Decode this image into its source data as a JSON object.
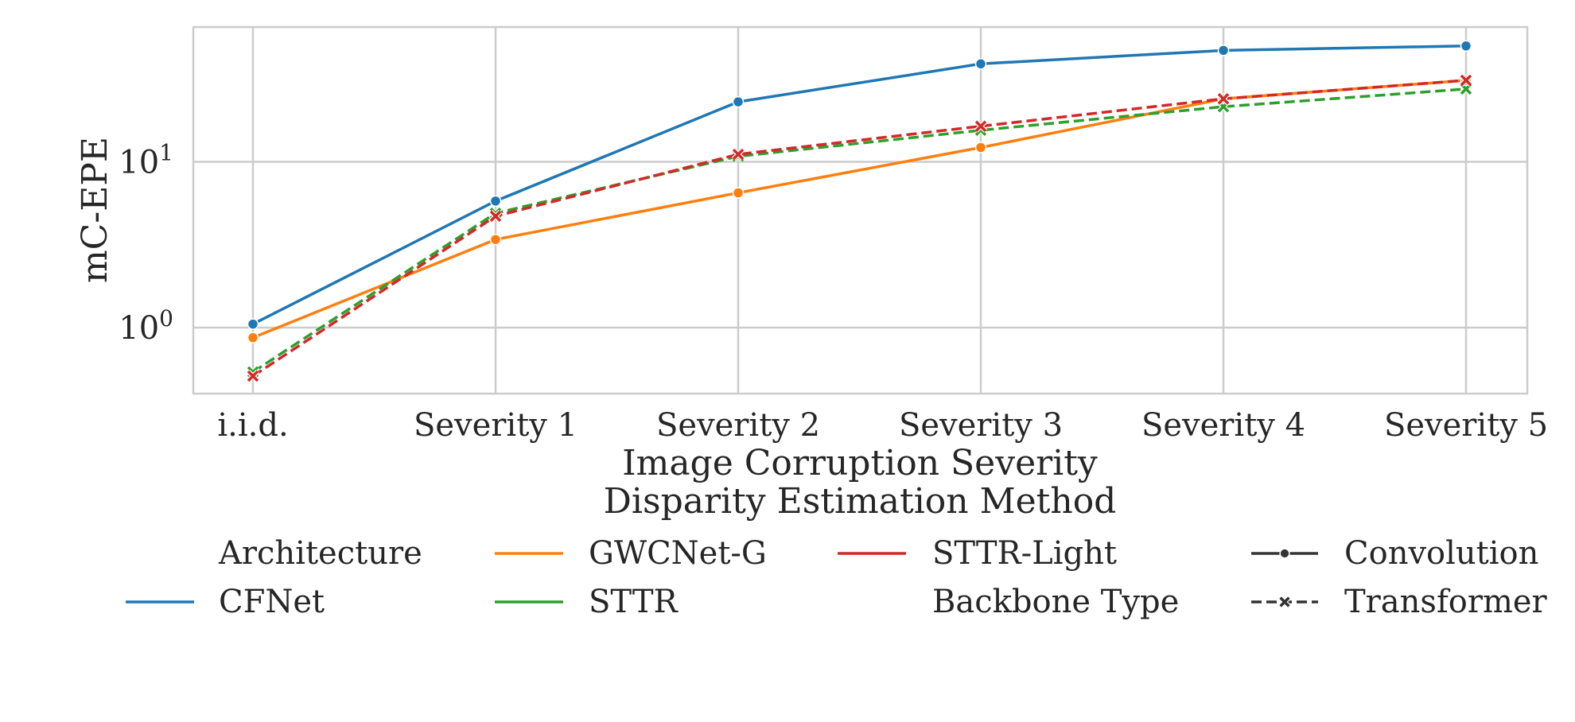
{
  "chart_data": {
    "type": "line",
    "xlabel": "Image Corruption Severity",
    "ylabel": "mC-EPE",
    "yscale": "log",
    "ylim": [
      0.4,
      65
    ],
    "yticks": [
      {
        "value": 1,
        "label": "10",
        "exp": "0"
      },
      {
        "value": 10,
        "label": "10",
        "exp": "1"
      }
    ],
    "categories": [
      "i.i.d.",
      "Severity 1",
      "Severity 2",
      "Severity 3",
      "Severity 4",
      "Severity 5"
    ],
    "grid": true,
    "series": [
      {
        "name": "CFNet",
        "color": "#1f77b4",
        "backbone": "Convolution",
        "values": [
          1.05,
          5.8,
          23,
          39,
          47,
          50
        ]
      },
      {
        "name": "GWCNet-G",
        "color": "#ff7f0e",
        "backbone": "Convolution",
        "values": [
          0.87,
          3.4,
          6.5,
          12.2,
          24,
          31
        ]
      },
      {
        "name": "STTR",
        "color": "#2ca02c",
        "backbone": "Transformer",
        "values": [
          0.54,
          4.9,
          10.8,
          15.5,
          21.5,
          27.5
        ]
      },
      {
        "name": "STTR-Light",
        "color": "#d62728",
        "backbone": "Transformer",
        "values": [
          0.51,
          4.7,
          11.1,
          16.4,
          24,
          31
        ]
      }
    ],
    "legend": {
      "title": "Disparity Estimation Method",
      "placement": "bottom",
      "architecture_heading": "Architecture",
      "backbone_heading": "Backbone Type",
      "backbone_types": [
        {
          "label": "Convolution",
          "dash": "solid",
          "marker": "circle"
        },
        {
          "label": "Transformer",
          "dash": "dashed",
          "marker": "x"
        }
      ]
    }
  }
}
